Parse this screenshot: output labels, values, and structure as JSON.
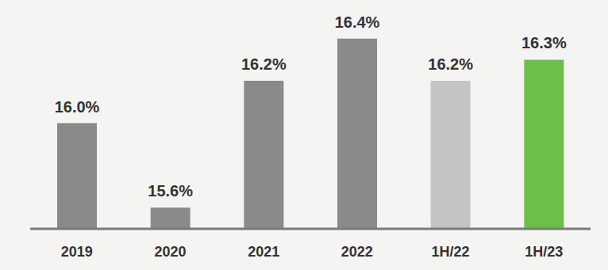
{
  "chart_data": {
    "type": "bar",
    "categories": [
      "2019",
      "2020",
      "2021",
      "2022",
      "1H/22",
      "1H/23"
    ],
    "values": [
      16.0,
      15.6,
      16.2,
      16.4,
      16.2,
      16.3
    ],
    "value_labels": [
      "16.0%",
      "15.6%",
      "16.2%",
      "16.4%",
      "16.2%",
      "16.3%"
    ],
    "colors": [
      "#8a8a8a",
      "#8a8a8a",
      "#8a8a8a",
      "#8a8a8a",
      "#c4c4c4",
      "#6cc04a"
    ],
    "ylim": [
      15.5,
      16.5
    ],
    "data_labels": true,
    "tick_labels": "x",
    "grid": false
  }
}
